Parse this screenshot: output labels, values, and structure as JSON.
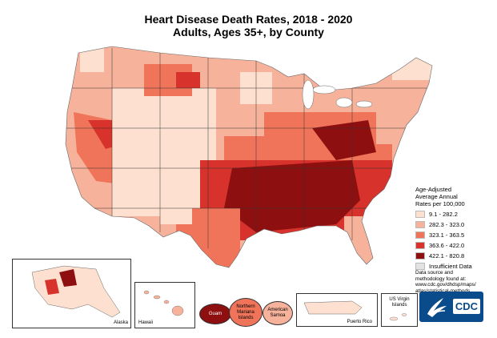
{
  "title_line1": "Heart Disease Death Rates, 2018 - 2020",
  "title_line2": "Adults, Ages 35+, by County",
  "legend": {
    "title_lines": [
      "Age-Adjusted",
      "Average Annual",
      "Rates per 100,000"
    ],
    "items": [
      {
        "label": "9.1 - 282.2",
        "color": "#fde0cf"
      },
      {
        "label": "282.3 - 323.0",
        "color": "#f7b29b"
      },
      {
        "label": "323.1 - 363.5",
        "color": "#ef7459"
      },
      {
        "label": "363.6 - 422.0",
        "color": "#d7322b"
      },
      {
        "label": "422.1 - 820.8",
        "color": "#8d0f10"
      },
      {
        "label": "Insufficient Data",
        "color": "#e3e3e3"
      }
    ]
  },
  "source_lines": [
    "Data source and",
    "methodology found at:",
    "www.cdc.gov/dhdsp/maps/",
    "atlas/statistical-methods"
  ],
  "insets": {
    "alaska": "Alaska",
    "hawaii": "Hawaii",
    "guam": "Guam",
    "northern_mariana": [
      "Northern",
      "Mariana",
      "Islands"
    ],
    "american_samoa": [
      "American",
      "Samoa"
    ],
    "puerto_rico": "Puerto Rico",
    "virgin_islands": [
      "US Virgin",
      "Islands"
    ]
  },
  "logo_text": "CDC"
}
